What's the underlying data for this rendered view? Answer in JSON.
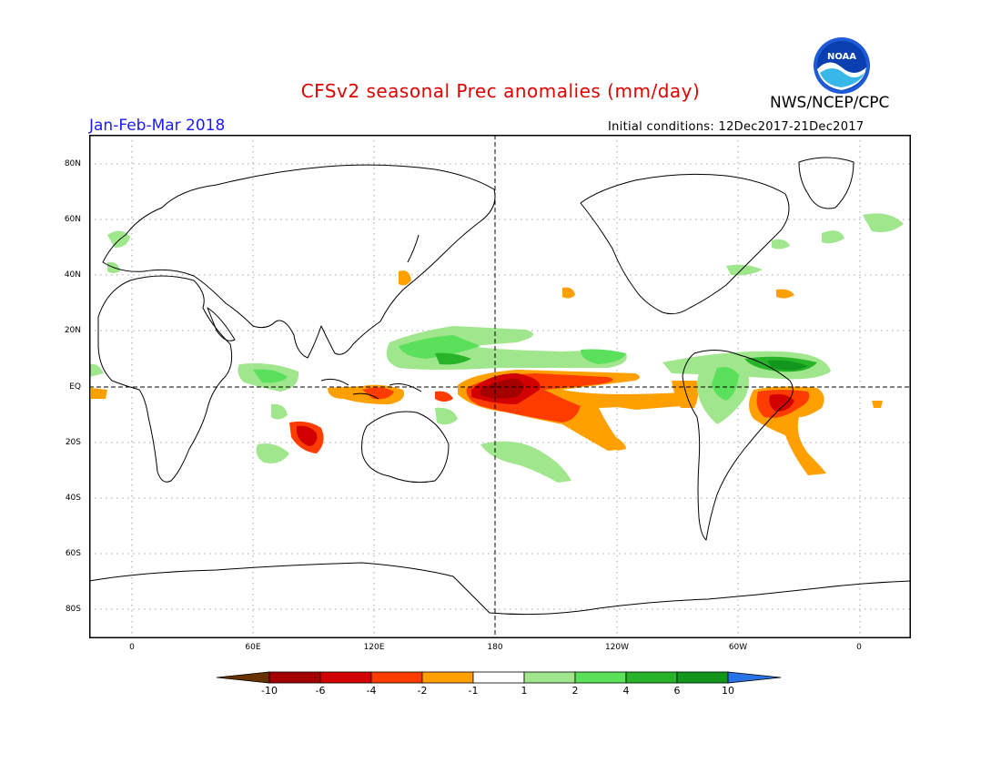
{
  "header": {
    "title": "CFSv2 seasonal Prec anomalies (mm/day)",
    "season": "Jan-Feb-Mar 2018",
    "initial_conditions": "Initial conditions: 12Dec2017-21Dec2017",
    "agency": "NWS/NCEP/CPC",
    "logo_text": "NOAA"
  },
  "map": {
    "lat_labels": [
      "80N",
      "60N",
      "40N",
      "20N",
      "EQ",
      "20S",
      "40S",
      "60S",
      "80S"
    ],
    "lon_labels": [
      "0",
      "60E",
      "120E",
      "180",
      "120W",
      "60W",
      "0"
    ]
  },
  "colorbar": {
    "labels": [
      "-10",
      "-6",
      "-4",
      "-2",
      "-1",
      "1",
      "2",
      "4",
      "6",
      "10"
    ],
    "colors": [
      "#663300",
      "#a50000",
      "#d20000",
      "#ff3c00",
      "#ffa000",
      "#ffffff",
      "#a0e68c",
      "#5ae05a",
      "#28b428",
      "#12961e",
      "#2873e6"
    ]
  }
}
